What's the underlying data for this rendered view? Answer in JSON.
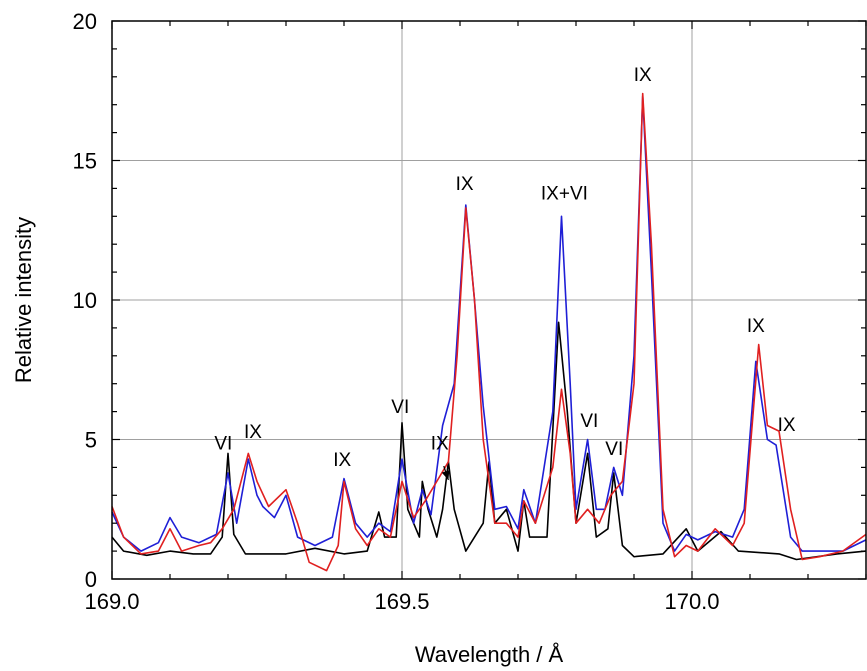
{
  "chart_data": {
    "type": "line",
    "xlabel": "Wavelength / Å",
    "ylabel": "Relative intensity",
    "xlim": [
      169.0,
      170.3
    ],
    "ylim": [
      0,
      20
    ],
    "x_ticks": [
      "169.0",
      "169.5",
      "170.0"
    ],
    "y_ticks": [
      "0",
      "5",
      "10",
      "15",
      "20"
    ],
    "grid": true,
    "series": [
      {
        "color": "#000000",
        "points": [
          [
            169.0,
            1.5
          ],
          [
            169.02,
            1.0
          ],
          [
            169.06,
            0.85
          ],
          [
            169.1,
            1.0
          ],
          [
            169.14,
            0.9
          ],
          [
            169.17,
            0.9
          ],
          [
            169.19,
            1.5
          ],
          [
            169.2,
            4.5
          ],
          [
            169.21,
            1.6
          ],
          [
            169.23,
            0.9
          ],
          [
            169.3,
            0.9
          ],
          [
            169.35,
            1.1
          ],
          [
            169.4,
            0.9
          ],
          [
            169.44,
            1.0
          ],
          [
            169.46,
            2.4
          ],
          [
            169.47,
            1.5
          ],
          [
            169.49,
            1.5
          ],
          [
            169.5,
            5.6
          ],
          [
            169.51,
            2.5
          ],
          [
            169.53,
            1.5
          ],
          [
            169.535,
            3.5
          ],
          [
            169.545,
            2.5
          ],
          [
            169.56,
            1.5
          ],
          [
            169.57,
            2.5
          ],
          [
            169.58,
            4.2
          ],
          [
            169.59,
            2.5
          ],
          [
            169.61,
            1.0
          ],
          [
            169.64,
            2.0
          ],
          [
            169.65,
            4.2
          ],
          [
            169.66,
            2.0
          ],
          [
            169.68,
            2.5
          ],
          [
            169.7,
            1.0
          ],
          [
            169.71,
            2.8
          ],
          [
            169.72,
            1.5
          ],
          [
            169.75,
            1.5
          ],
          [
            169.77,
            9.2
          ],
          [
            169.785,
            6.0
          ],
          [
            169.8,
            2.0
          ],
          [
            169.82,
            4.5
          ],
          [
            169.835,
            1.5
          ],
          [
            169.855,
            1.8
          ],
          [
            169.865,
            3.8
          ],
          [
            169.88,
            1.2
          ],
          [
            169.9,
            0.8
          ],
          [
            169.95,
            0.9
          ],
          [
            169.99,
            1.8
          ],
          [
            170.01,
            1.0
          ],
          [
            170.05,
            1.7
          ],
          [
            170.08,
            1.0
          ],
          [
            170.15,
            0.9
          ],
          [
            170.18,
            0.7
          ],
          [
            170.25,
            0.9
          ],
          [
            170.3,
            1.0
          ]
        ]
      },
      {
        "color": "#1f1fd6",
        "points": [
          [
            169.0,
            2.4
          ],
          [
            169.02,
            1.5
          ],
          [
            169.05,
            1.0
          ],
          [
            169.08,
            1.3
          ],
          [
            169.1,
            2.2
          ],
          [
            169.12,
            1.5
          ],
          [
            169.15,
            1.3
          ],
          [
            169.18,
            1.6
          ],
          [
            169.2,
            3.8
          ],
          [
            169.215,
            2.0
          ],
          [
            169.235,
            4.3
          ],
          [
            169.25,
            3.0
          ],
          [
            169.26,
            2.6
          ],
          [
            169.28,
            2.2
          ],
          [
            169.3,
            3.0
          ],
          [
            169.32,
            1.5
          ],
          [
            169.35,
            1.2
          ],
          [
            169.38,
            1.5
          ],
          [
            169.4,
            3.6
          ],
          [
            169.42,
            2.0
          ],
          [
            169.44,
            1.5
          ],
          [
            169.46,
            2.0
          ],
          [
            169.48,
            1.7
          ],
          [
            169.5,
            4.3
          ],
          [
            169.52,
            2.0
          ],
          [
            169.535,
            3.2
          ],
          [
            169.55,
            2.3
          ],
          [
            169.57,
            5.5
          ],
          [
            169.59,
            7.0
          ],
          [
            169.61,
            13.4
          ],
          [
            169.625,
            10.0
          ],
          [
            169.64,
            6.2
          ],
          [
            169.66,
            2.5
          ],
          [
            169.68,
            2.6
          ],
          [
            169.7,
            1.8
          ],
          [
            169.71,
            3.2
          ],
          [
            169.73,
            2.0
          ],
          [
            169.76,
            6.0
          ],
          [
            169.775,
            13.0
          ],
          [
            169.79,
            7.0
          ],
          [
            169.8,
            2.5
          ],
          [
            169.82,
            5.0
          ],
          [
            169.835,
            2.5
          ],
          [
            169.85,
            2.5
          ],
          [
            169.865,
            4.0
          ],
          [
            169.88,
            3.0
          ],
          [
            169.9,
            8.0
          ],
          [
            169.915,
            17.3
          ],
          [
            169.93,
            11.0
          ],
          [
            169.95,
            2.0
          ],
          [
            169.97,
            1.0
          ],
          [
            169.99,
            1.6
          ],
          [
            170.01,
            1.4
          ],
          [
            170.04,
            1.7
          ],
          [
            170.07,
            1.5
          ],
          [
            170.09,
            2.5
          ],
          [
            170.11,
            7.8
          ],
          [
            170.13,
            5.0
          ],
          [
            170.145,
            4.8
          ],
          [
            170.17,
            1.5
          ],
          [
            170.19,
            1.0
          ],
          [
            170.22,
            1.0
          ],
          [
            170.26,
            1.0
          ],
          [
            170.3,
            1.4
          ]
        ]
      },
      {
        "color": "#e02020",
        "points": [
          [
            169.0,
            2.6
          ],
          [
            169.02,
            1.5
          ],
          [
            169.05,
            0.9
          ],
          [
            169.08,
            1.0
          ],
          [
            169.1,
            1.8
          ],
          [
            169.12,
            1.0
          ],
          [
            169.15,
            1.2
          ],
          [
            169.17,
            1.3
          ],
          [
            169.19,
            1.8
          ],
          [
            169.21,
            2.5
          ],
          [
            169.235,
            4.5
          ],
          [
            169.25,
            3.5
          ],
          [
            169.27,
            2.6
          ],
          [
            169.3,
            3.2
          ],
          [
            169.32,
            2.0
          ],
          [
            169.34,
            0.6
          ],
          [
            169.37,
            0.3
          ],
          [
            169.39,
            1.2
          ],
          [
            169.4,
            3.5
          ],
          [
            169.42,
            1.8
          ],
          [
            169.44,
            1.2
          ],
          [
            169.46,
            1.8
          ],
          [
            169.48,
            1.5
          ],
          [
            169.5,
            3.5
          ],
          [
            169.52,
            2.2
          ],
          [
            169.54,
            2.8
          ],
          [
            169.56,
            3.5
          ],
          [
            169.58,
            4.2
          ],
          [
            169.595,
            8.0
          ],
          [
            169.61,
            13.3
          ],
          [
            169.625,
            10.0
          ],
          [
            169.64,
            5.0
          ],
          [
            169.66,
            2.0
          ],
          [
            169.68,
            2.0
          ],
          [
            169.7,
            1.5
          ],
          [
            169.71,
            2.8
          ],
          [
            169.73,
            2.0
          ],
          [
            169.76,
            4.0
          ],
          [
            169.775,
            6.8
          ],
          [
            169.79,
            4.5
          ],
          [
            169.8,
            2.0
          ],
          [
            169.82,
            2.5
          ],
          [
            169.84,
            2.0
          ],
          [
            169.86,
            3.0
          ],
          [
            169.88,
            3.5
          ],
          [
            169.9,
            7.0
          ],
          [
            169.915,
            17.4
          ],
          [
            169.93,
            12.0
          ],
          [
            169.95,
            2.5
          ],
          [
            169.97,
            0.8
          ],
          [
            169.99,
            1.2
          ],
          [
            170.01,
            1.0
          ],
          [
            170.04,
            1.8
          ],
          [
            170.07,
            1.2
          ],
          [
            170.09,
            2.0
          ],
          [
            170.115,
            8.4
          ],
          [
            170.13,
            5.5
          ],
          [
            170.15,
            5.3
          ],
          [
            170.17,
            2.5
          ],
          [
            170.19,
            0.7
          ],
          [
            170.22,
            0.8
          ],
          [
            170.26,
            1.0
          ],
          [
            170.3,
            1.6
          ]
        ]
      }
    ],
    "annotations": [
      {
        "text": "VI",
        "x": 169.192,
        "y": 4.65
      },
      {
        "text": "IX",
        "x": 169.243,
        "y": 5.05
      },
      {
        "text": "IX",
        "x": 169.397,
        "y": 4.05
      },
      {
        "text": "VI",
        "x": 169.497,
        "y": 5.95
      },
      {
        "text": "IX",
        "x": 169.565,
        "y": 4.65
      },
      {
        "text": "IX",
        "x": 169.608,
        "y": 13.95
      },
      {
        "text": "IX+VI",
        "x": 169.78,
        "y": 13.6
      },
      {
        "text": "VI",
        "x": 169.823,
        "y": 5.45
      },
      {
        "text": "VI",
        "x": 169.866,
        "y": 4.45
      },
      {
        "text": "IX",
        "x": 169.915,
        "y": 17.85
      },
      {
        "text": "IX",
        "x": 170.11,
        "y": 8.85
      },
      {
        "text": "IX",
        "x": 170.163,
        "y": 5.3
      }
    ],
    "arrow": {
      "from": [
        169.572,
        4.05
      ],
      "to": [
        169.58,
        3.55
      ]
    }
  }
}
